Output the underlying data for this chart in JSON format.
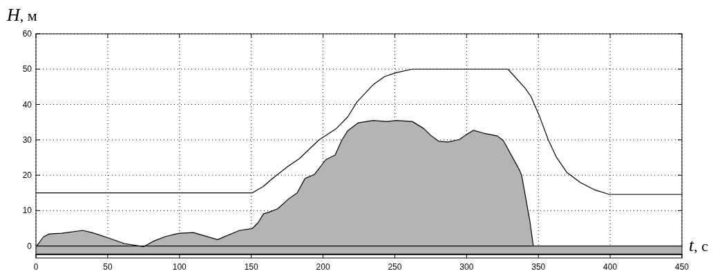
{
  "chart_data": {
    "type": "area",
    "xlabel": "t, с",
    "ylabel": "H, м",
    "xlim": [
      0,
      450
    ],
    "ylim": [
      -3.4,
      60
    ],
    "xticks": [
      0,
      50,
      100,
      150,
      200,
      250,
      300,
      350,
      400,
      450
    ],
    "yticks": [
      0,
      10,
      20,
      30,
      40,
      50,
      60
    ],
    "grid": true,
    "ref_lines": [
      {
        "axis": "y",
        "value": -2.4,
        "color": "#000000"
      }
    ],
    "bands": [
      {
        "axis": "y",
        "from": -2.4,
        "to": 0,
        "color": "#b4b4b4"
      }
    ],
    "series": [
      {
        "color": "#b4b4b4",
        "x": [
          0.5,
          5.3,
          9.3,
          18,
          32.6,
          39,
          50.3,
          61.5,
          75.1,
          81.6,
          90.4,
          100,
          109.7,
          126.5,
          141.8,
          150.6,
          154.6,
          158.6,
          162.6,
          168.3,
          176.3,
          181.9,
          187.5,
          193.9,
          201.9,
          208.4,
          213.2,
          217.2,
          224.4,
          234.9,
          244.5,
          250.9,
          262.2,
          270.2,
          275,
          280.6,
          287,
          295,
          299.1,
          304.7,
          311.9,
          321.5,
          325.6,
          336.8,
          338.4,
          344,
          346.5,
          450
        ],
        "values": [
          0,
          2.6,
          3.4,
          3.6,
          4.4,
          3.8,
          2.3,
          0.7,
          -0.2,
          1.3,
          2.7,
          3.6,
          3.8,
          1.8,
          4.4,
          4.9,
          6.5,
          9.1,
          9.6,
          10.5,
          13.4,
          15,
          19.1,
          20.2,
          24.4,
          25.7,
          30,
          32.6,
          34.8,
          35.5,
          35.2,
          35.5,
          35.2,
          33.2,
          31.3,
          29.6,
          29.4,
          30.1,
          31.3,
          32.7,
          31.9,
          31.1,
          29.8,
          21.5,
          19.9,
          7.2,
          0,
          0
        ]
      },
      {
        "type": "line",
        "color": "#000000",
        "x": [
          0,
          150.6,
          158.6,
          164.2,
          175.5,
          183.5,
          197.2,
          209.2,
          217.2,
          223.6,
          234.9,
          242.9,
          250.9,
          262.2,
          328.8,
          340.8,
          344.8,
          350.4,
          356.9,
          362.6,
          369.8,
          379.4,
          389,
          399.4,
          450
        ],
        "values": [
          15,
          15,
          16.9,
          18.9,
          22.5,
          24.7,
          30,
          33.2,
          36.5,
          40.7,
          45.6,
          47.9,
          49,
          50,
          50,
          44.6,
          42.3,
          37.1,
          30,
          25.1,
          20.8,
          17.9,
          15.9,
          14.6,
          14.6
        ]
      }
    ]
  }
}
